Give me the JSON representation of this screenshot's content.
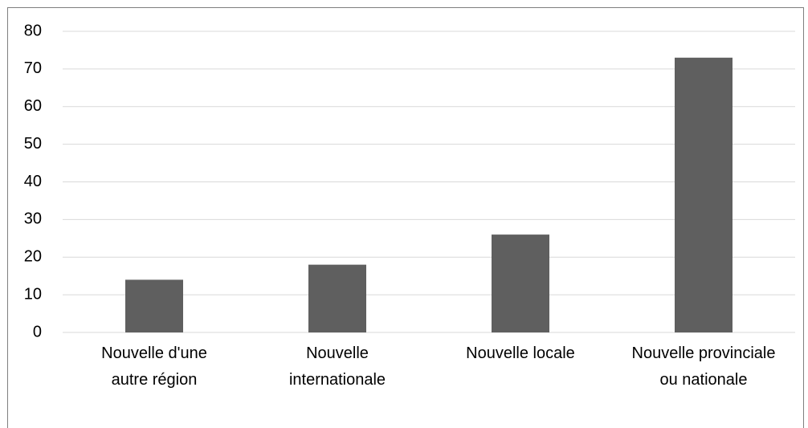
{
  "chart_data": {
    "type": "bar",
    "categories": [
      "Nouvelle d'une autre région",
      "Nouvelle internationale",
      "Nouvelle locale",
      "Nouvelle provinciale ou nationale"
    ],
    "values": [
      14,
      18,
      26,
      73
    ],
    "color": "#5f5f5f",
    "ylim": [
      0,
      80
    ],
    "yticks": [
      0,
      10,
      20,
      30,
      40,
      50,
      60,
      70,
      80
    ],
    "grid": true
  }
}
